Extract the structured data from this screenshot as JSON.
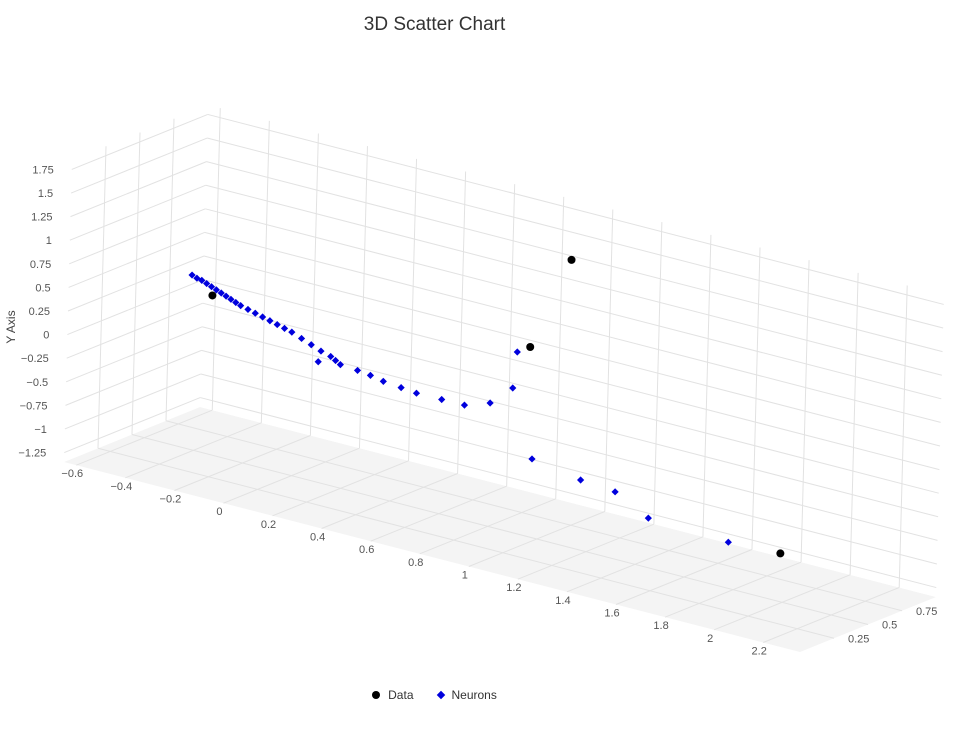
{
  "chart_data": {
    "type": "scatter",
    "title": "3D Scatter Chart",
    "ylabel": "Y Axis",
    "x_ticks": [
      "−0.6",
      "−0.4",
      "−0.2",
      "0",
      "0.2",
      "0.4",
      "0.6",
      "0.8",
      "1",
      "1.2",
      "1.4",
      "1.6",
      "1.8",
      "2",
      "2.2"
    ],
    "y_ticks": [
      "−1.25",
      "−1",
      "−0.75",
      "−0.5",
      "−0.25",
      "0",
      "0.25",
      "0.5",
      "0.75",
      "1",
      "1.25",
      "1.5",
      "1.75"
    ],
    "z_ticks": [
      "0.25",
      "0.5",
      "0.75"
    ],
    "xlim": [
      -0.65,
      2.35
    ],
    "ylim": [
      -1.35,
      1.85
    ],
    "zlim": [
      0,
      1
    ],
    "series": [
      {
        "name": "Data",
        "color": "#000000",
        "symbol": "circle",
        "points": [
          {
            "x": -0.53,
            "y": 0.0,
            "z": 0.85
          },
          {
            "x": 0.98,
            "y": 0.7,
            "z": 0.45
          },
          {
            "x": 0.92,
            "y": 1.35,
            "z": 0.85
          },
          {
            "x": 2.2,
            "y": -0.47,
            "z": 0.11
          }
        ]
      },
      {
        "name": "Neurons",
        "color": "#0000dd",
        "symbol": "diamond",
        "points": [
          {
            "x": -0.62,
            "y": 0.15,
            "z": 0.86
          },
          {
            "x": -0.6,
            "y": 0.13,
            "z": 0.86
          },
          {
            "x": -0.58,
            "y": 0.12,
            "z": 0.86
          },
          {
            "x": -0.56,
            "y": 0.1,
            "z": 0.86
          },
          {
            "x": -0.54,
            "y": 0.08,
            "z": 0.86
          },
          {
            "x": -0.52,
            "y": 0.06,
            "z": 0.86
          },
          {
            "x": -0.5,
            "y": 0.04,
            "z": 0.86
          },
          {
            "x": -0.48,
            "y": 0.02,
            "z": 0.86
          },
          {
            "x": -0.46,
            "y": 0.0,
            "z": 0.86
          },
          {
            "x": -0.44,
            "y": -0.02,
            "z": 0.86
          },
          {
            "x": -0.42,
            "y": -0.04,
            "z": 0.86
          },
          {
            "x": -0.39,
            "y": -0.06,
            "z": 0.86
          },
          {
            "x": -0.36,
            "y": -0.08,
            "z": 0.86
          },
          {
            "x": -0.33,
            "y": -0.1,
            "z": 0.86
          },
          {
            "x": -0.3,
            "y": -0.12,
            "z": 0.86
          },
          {
            "x": -0.27,
            "y": -0.14,
            "z": 0.86
          },
          {
            "x": -0.24,
            "y": -0.16,
            "z": 0.86
          },
          {
            "x": -0.21,
            "y": -0.18,
            "z": 0.86
          },
          {
            "x": -0.17,
            "y": -0.22,
            "z": 0.86
          },
          {
            "x": -0.13,
            "y": -0.26,
            "z": 0.86
          },
          {
            "x": -0.09,
            "y": -0.3,
            "z": 0.86
          },
          {
            "x": -0.05,
            "y": -0.33,
            "z": 0.86
          },
          {
            "x": -0.03,
            "y": -0.36,
            "z": 0.86
          },
          {
            "x": -0.01,
            "y": -0.39,
            "z": 0.86
          },
          {
            "x": -0.1,
            "y": -0.42,
            "z": 0.86
          },
          {
            "x": 0.12,
            "y": -0.3,
            "z": 0.75
          },
          {
            "x": 0.2,
            "y": -0.27,
            "z": 0.7
          },
          {
            "x": 0.28,
            "y": -0.25,
            "z": 0.65
          },
          {
            "x": 0.38,
            "y": -0.22,
            "z": 0.6
          },
          {
            "x": 0.47,
            "y": -0.19,
            "z": 0.55
          },
          {
            "x": 0.6,
            "y": -0.14,
            "z": 0.5
          },
          {
            "x": 0.72,
            "y": -0.09,
            "z": 0.45
          },
          {
            "x": 0.84,
            "y": 0.03,
            "z": 0.42
          },
          {
            "x": 0.93,
            "y": 0.25,
            "z": 0.42
          },
          {
            "x": 0.95,
            "y": 0.65,
            "z": 0.41
          },
          {
            "x": 1.07,
            "y": -0.35,
            "z": 0.32
          },
          {
            "x": 1.28,
            "y": -0.42,
            "z": 0.3
          },
          {
            "x": 1.41,
            "y": -0.47,
            "z": 0.32
          },
          {
            "x": 1.58,
            "y": -0.6,
            "z": 0.26
          },
          {
            "x": 1.95,
            "y": -0.56,
            "z": 0.18
          }
        ]
      }
    ],
    "legend_position": "bottom",
    "grid": true
  }
}
